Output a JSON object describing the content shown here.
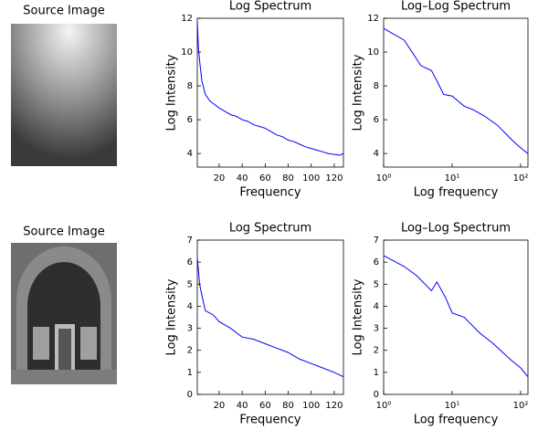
{
  "images": [
    {
      "title": "Source Image"
    },
    {
      "title": "Source Image"
    }
  ],
  "chart_data": [
    {
      "type": "line",
      "title": "Log Spectrum",
      "xlabel": "Frequency",
      "ylabel": "Log Intensity",
      "x": [
        1,
        2,
        3,
        5,
        8,
        12,
        16,
        20,
        25,
        30,
        35,
        40,
        45,
        50,
        55,
        60,
        65,
        70,
        75,
        80,
        85,
        90,
        95,
        100,
        105,
        110,
        115,
        120,
        125,
        128
      ],
      "series": [
        {
          "color": "#0000ff",
          "values": [
            11.8,
            10.2,
            9.5,
            8.3,
            7.5,
            7.1,
            6.9,
            6.7,
            6.5,
            6.3,
            6.2,
            6.0,
            5.9,
            5.7,
            5.6,
            5.5,
            5.3,
            5.1,
            5.0,
            4.8,
            4.7,
            4.55,
            4.4,
            4.3,
            4.2,
            4.1,
            4.0,
            3.95,
            3.9,
            4.0
          ]
        }
      ],
      "xlim": [
        1,
        128
      ],
      "ylim": [
        3.2,
        12
      ],
      "xticks": [
        20,
        40,
        60,
        80,
        100,
        120
      ],
      "yticks": [
        4,
        6,
        8,
        10,
        12
      ]
    },
    {
      "type": "line",
      "title": "Log–Log Spectrum",
      "xlabel": "Log frequency",
      "ylabel": "Log Intensity",
      "xscale": "log",
      "x": [
        1,
        2,
        3.5,
        5,
        6,
        7.5,
        10,
        15,
        20,
        30,
        45,
        60,
        75,
        90,
        110,
        128
      ],
      "series": [
        {
          "color": "#0000ff",
          "values": [
            11.4,
            10.7,
            9.2,
            8.9,
            8.3,
            7.5,
            7.4,
            6.8,
            6.6,
            6.2,
            5.7,
            5.2,
            4.8,
            4.5,
            4.2,
            4.0
          ]
        }
      ],
      "xlim": [
        1,
        128
      ],
      "ylim": [
        3.2,
        12
      ],
      "xticks": [
        {
          "value": 1,
          "label": "10⁰"
        },
        {
          "value": 10,
          "label": "10¹"
        },
        {
          "value": 100,
          "label": "10²"
        }
      ],
      "yticks": [
        4,
        6,
        8,
        10,
        12
      ]
    },
    {
      "type": "line",
      "title": "Log Spectrum",
      "xlabel": "Frequency",
      "ylabel": "Log Intensity",
      "x": [
        1,
        2,
        3,
        5,
        8,
        15,
        20,
        30,
        40,
        50,
        60,
        70,
        80,
        90,
        100,
        110,
        120,
        128
      ],
      "series": [
        {
          "color": "#0000ff",
          "values": [
            6.2,
            5.6,
            5.0,
            4.5,
            3.8,
            3.6,
            3.3,
            3.0,
            2.6,
            2.5,
            2.3,
            2.1,
            1.9,
            1.6,
            1.4,
            1.2,
            1.0,
            0.8
          ]
        }
      ],
      "xlim": [
        1,
        128
      ],
      "ylim": [
        0,
        7
      ],
      "xticks": [
        20,
        40,
        60,
        80,
        100,
        120
      ],
      "yticks": [
        0,
        1,
        2,
        3,
        4,
        5,
        6,
        7
      ]
    },
    {
      "type": "line",
      "title": "Log–Log Spectrum",
      "xlabel": "Log frequency",
      "ylabel": "Log Intensity",
      "xscale": "log",
      "x": [
        1,
        2,
        3,
        5,
        6,
        8,
        10,
        15,
        25,
        40,
        70,
        100,
        128
      ],
      "series": [
        {
          "color": "#0000ff",
          "values": [
            6.3,
            5.8,
            5.4,
            4.7,
            5.1,
            4.4,
            3.7,
            3.5,
            2.8,
            2.3,
            1.6,
            1.2,
            0.8
          ]
        }
      ],
      "xlim": [
        1,
        128
      ],
      "ylim": [
        0,
        7
      ],
      "xticks": [
        {
          "value": 1,
          "label": "10⁰"
        },
        {
          "value": 10,
          "label": "10¹"
        },
        {
          "value": 100,
          "label": "10²"
        }
      ],
      "yticks": [
        0,
        1,
        2,
        3,
        4,
        5,
        6,
        7
      ]
    }
  ]
}
